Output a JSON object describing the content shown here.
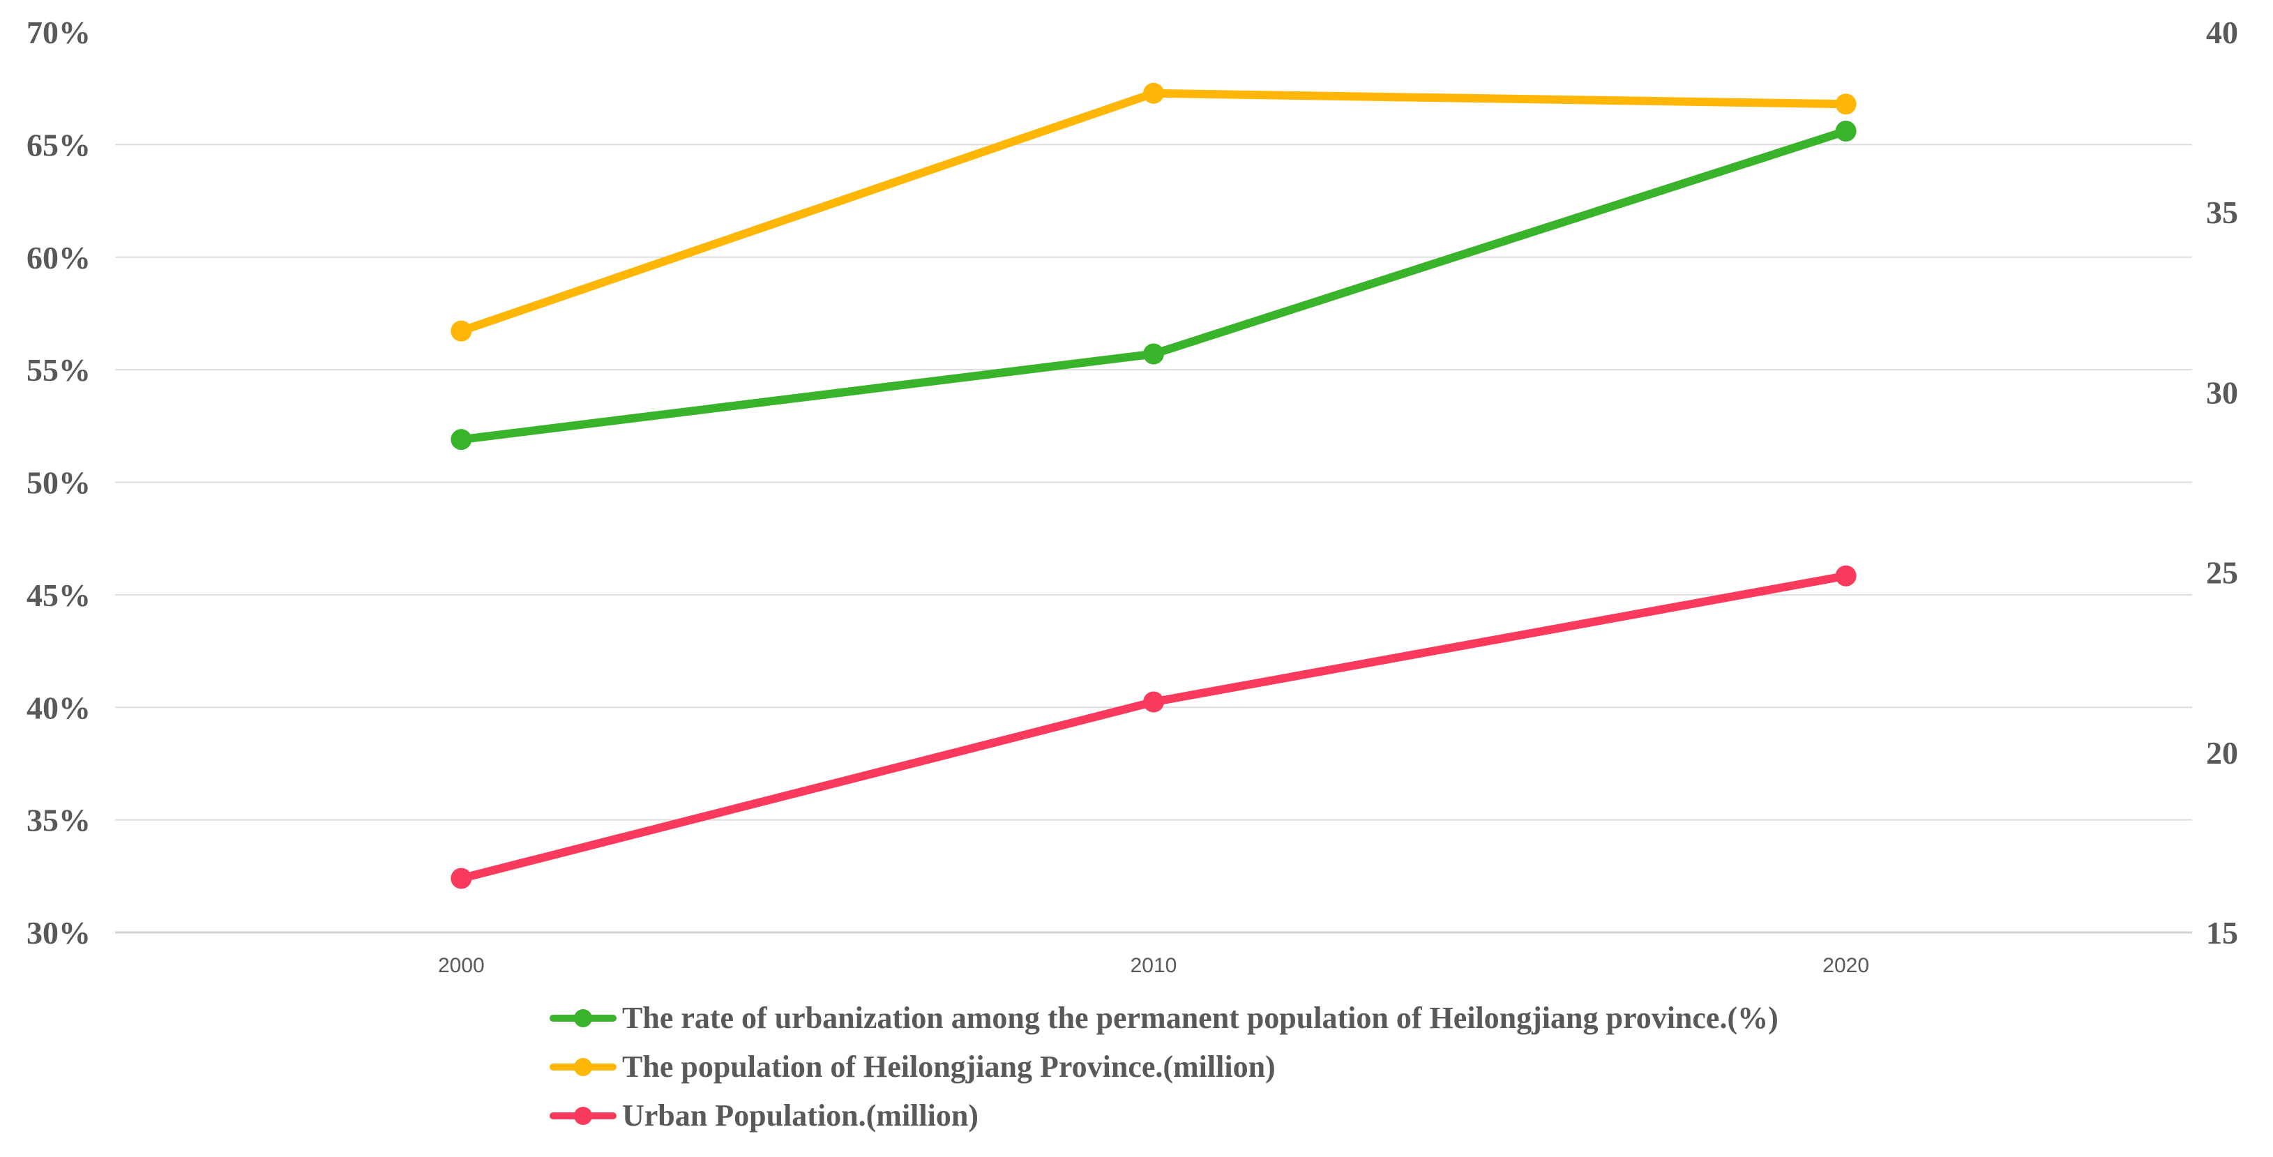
{
  "chart_data": {
    "type": "line",
    "title": "",
    "categories": [
      "2000",
      "2010",
      "2020"
    ],
    "series": [
      {
        "name": "The rate of urbanization among the permanent population of Heilongjiang province.(%)",
        "axis": "left",
        "color": "#39B32A",
        "values": [
          51.9,
          55.7,
          65.6
        ]
      },
      {
        "name": "The population of Heilongjiang Province.(million)",
        "axis": "right",
        "color": "#FFB606",
        "values": [
          31.7,
          38.3,
          38.0
        ]
      },
      {
        "name": "Urban Population.(million)",
        "axis": "right",
        "color": "#F93A5C",
        "values": [
          16.5,
          21.4,
          24.9
        ]
      }
    ],
    "left_axis": {
      "min": 30,
      "max": 70,
      "step": 5,
      "suffix": "%",
      "tick_labels": [
        "70%",
        "65%",
        "60%",
        "55%",
        "50%",
        "45%",
        "40%",
        "35%",
        "30%"
      ]
    },
    "right_axis": {
      "min": 15,
      "max": 40,
      "step": 5,
      "tick_labels": [
        "40",
        "35",
        "30",
        "25",
        "20",
        "15"
      ]
    },
    "grid": true,
    "legend_position": "bottom-left"
  },
  "style": {
    "grid_color": "#DDDDDD",
    "axis_line_color": "#D2D2D2",
    "label_color": "#595959",
    "background": "#FFFFFF"
  }
}
